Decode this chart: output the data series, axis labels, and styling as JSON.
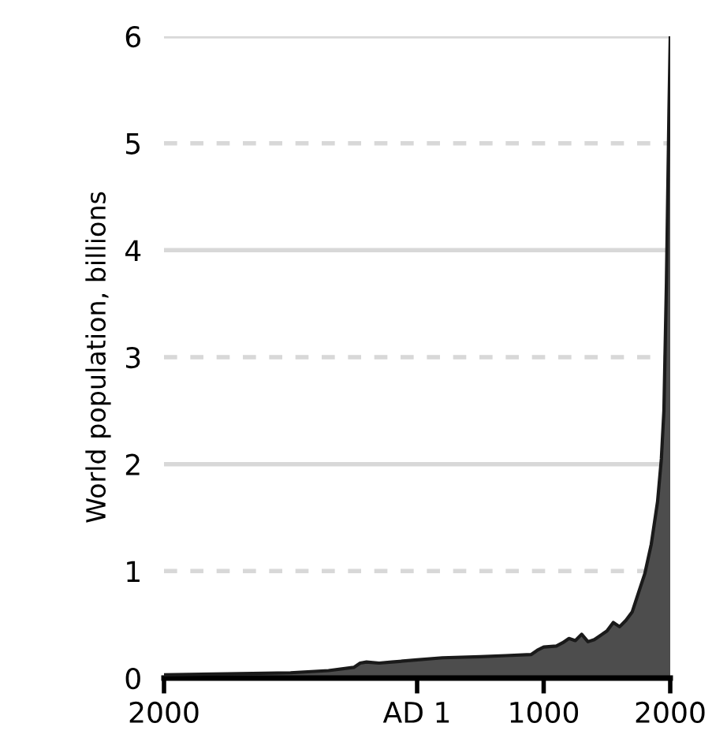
{
  "chart_data": {
    "type": "area",
    "ylabel": "World population, billions",
    "x": [
      -2000,
      -1500,
      -1000,
      -700,
      -500,
      -450,
      -400,
      -300,
      -200,
      0,
      200,
      500,
      700,
      900,
      950,
      1000,
      1100,
      1150,
      1200,
      1250,
      1300,
      1350,
      1400,
      1500,
      1550,
      1600,
      1650,
      1700,
      1750,
      1800,
      1850,
      1900,
      1930,
      1950,
      1970,
      1990,
      2000
    ],
    "series": [
      {
        "color": "#4d4d4d",
        "values": [
          0.03,
          0.04,
          0.05,
          0.07,
          0.1,
          0.14,
          0.15,
          0.14,
          0.15,
          0.17,
          0.19,
          0.2,
          0.21,
          0.22,
          0.26,
          0.29,
          0.3,
          0.33,
          0.37,
          0.35,
          0.41,
          0.34,
          0.36,
          0.44,
          0.52,
          0.48,
          0.54,
          0.62,
          0.8,
          0.98,
          1.25,
          1.65,
          2.05,
          2.5,
          3.7,
          5.3,
          6.0
        ]
      }
    ],
    "xlim": [
      -2000,
      2000
    ],
    "ylim": [
      0,
      6
    ],
    "xticks": [
      {
        "value": -2000,
        "label": "2000"
      },
      {
        "value": 0,
        "label": "AD 1"
      },
      1000,
      2000
    ],
    "yticks": [
      0,
      1,
      2,
      3,
      4,
      5,
      6
    ],
    "grid": "y"
  }
}
